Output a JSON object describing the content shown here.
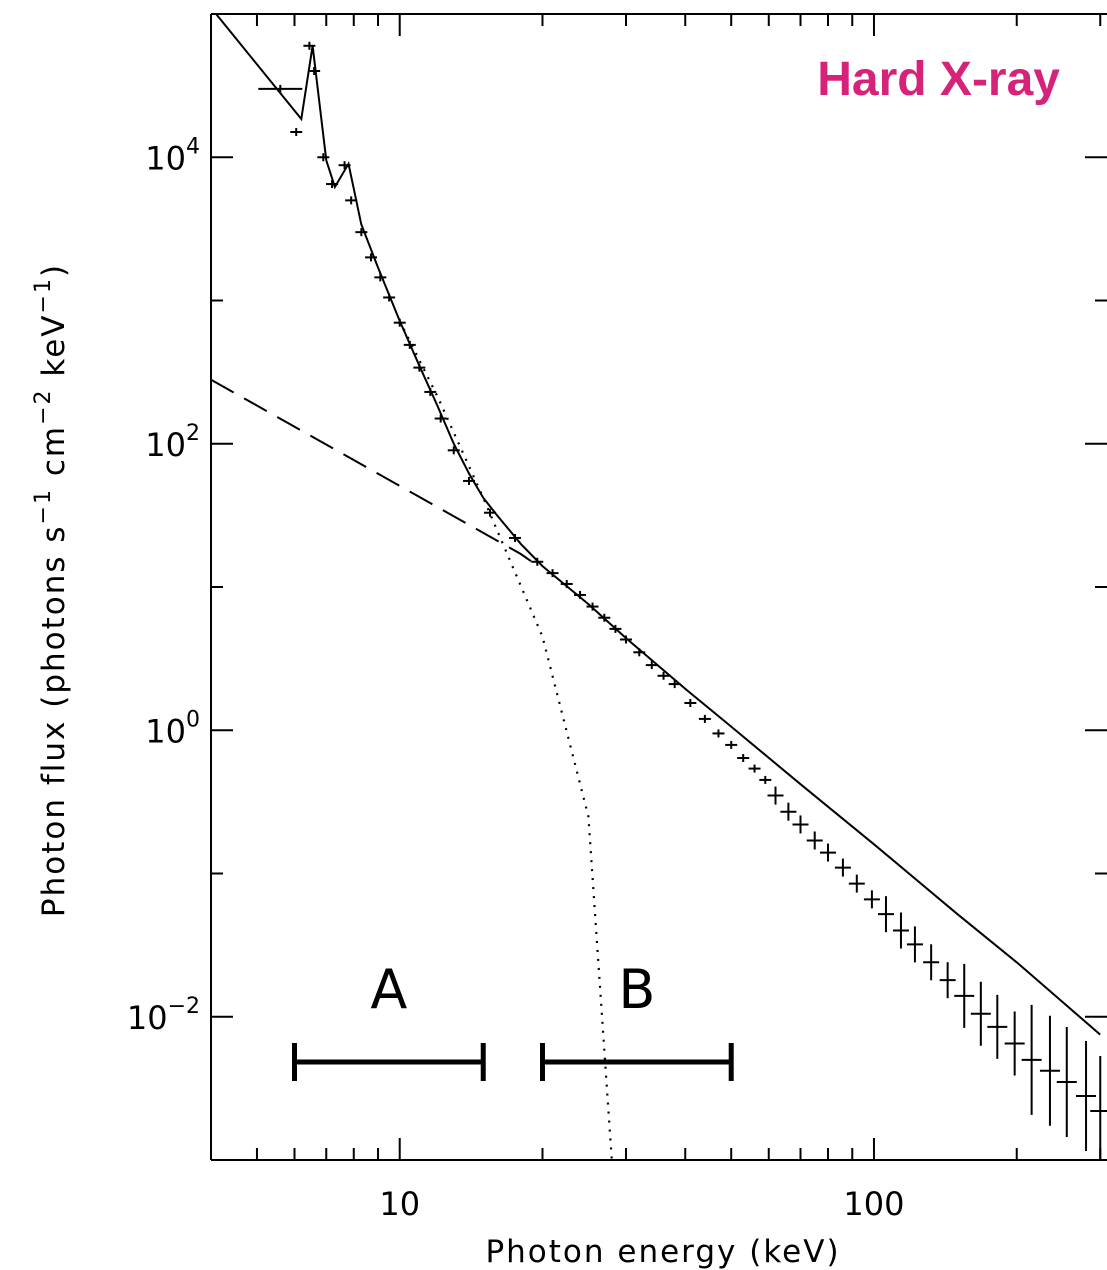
{
  "badge": {
    "text": "Hard X-ray",
    "color": "#d6237a"
  },
  "chart_data": {
    "type": "scatter",
    "xlabel": "Photon energy (keV)",
    "ylabel": {
      "prefix": "Photon flux (photons s",
      "exp1": "−1",
      "mid": " cm",
      "exp2": "−2",
      "mid2": " keV",
      "exp3": "−1",
      "suffix": ")"
    },
    "x_scale": "log",
    "y_scale": "log",
    "xlim": [
      4,
      310
    ],
    "ylim": [
      0.001,
      100000
    ],
    "x_ticks": [
      {
        "value": 10,
        "label": "10"
      },
      {
        "value": 100,
        "label": "100"
      }
    ],
    "y_ticks": [
      {
        "value": 10000,
        "base": "10",
        "exp": "4"
      },
      {
        "value": 100,
        "base": "10",
        "exp": "2"
      },
      {
        "value": 1,
        "base": "10",
        "exp": "0"
      },
      {
        "value": 0.01,
        "base": "10",
        "exp": "−2"
      }
    ],
    "data_points": [
      [
        5.6,
        30000
      ],
      [
        6.05,
        15000
      ],
      [
        6.45,
        60000
      ],
      [
        6.6,
        40000
      ],
      [
        6.9,
        10000
      ],
      [
        7.2,
        6500
      ],
      [
        7.65,
        8800
      ],
      [
        7.9,
        5000
      ],
      [
        8.3,
        3000
      ],
      [
        8.7,
        2000
      ],
      [
        9.1,
        1450
      ],
      [
        9.5,
        1050
      ],
      [
        10.0,
        700
      ],
      [
        10.5,
        490
      ],
      [
        11.0,
        340
      ],
      [
        11.6,
        230
      ],
      [
        12.2,
        150
      ],
      [
        13.0,
        90
      ],
      [
        14.0,
        55
      ],
      [
        15.5,
        33
      ],
      [
        17.5,
        22
      ],
      [
        19.5,
        15
      ],
      [
        21.0,
        12.5
      ],
      [
        22.5,
        10.5
      ],
      [
        24,
        8.8
      ],
      [
        25.5,
        7.3
      ],
      [
        27,
        6.1
      ],
      [
        28.5,
        5.1
      ],
      [
        30,
        4.3
      ],
      [
        32,
        3.5
      ],
      [
        34,
        2.85
      ],
      [
        36,
        2.4
      ],
      [
        38,
        2.1
      ],
      [
        41,
        1.55
      ],
      [
        44,
        1.2
      ],
      [
        47,
        0.95
      ],
      [
        50,
        0.79
      ],
      [
        53,
        0.64
      ],
      [
        56,
        0.54
      ],
      [
        59,
        0.45
      ],
      [
        62,
        0.35
      ],
      [
        66,
        0.27
      ],
      [
        70,
        0.22
      ],
      [
        75,
        0.17
      ],
      [
        80,
        0.14
      ],
      [
        86,
        0.11
      ],
      [
        92,
        0.085
      ],
      [
        99,
        0.066
      ],
      [
        106,
        0.052
      ],
      [
        114,
        0.04
      ],
      [
        122,
        0.032
      ],
      [
        132,
        0.024
      ],
      [
        143,
        0.018
      ],
      [
        155,
        0.014
      ],
      [
        168,
        0.0105
      ],
      [
        182,
        0.0085
      ],
      [
        198,
        0.0065
      ],
      [
        215,
        0.005
      ],
      [
        235,
        0.0042
      ],
      [
        255,
        0.0035
      ],
      [
        280,
        0.0028
      ],
      [
        300,
        0.0022
      ]
    ],
    "model_total": [
      [
        4.1,
        100000
      ],
      [
        6.2,
        18500
      ],
      [
        6.55,
        60000
      ],
      [
        7.0,
        9500
      ],
      [
        7.3,
        6200
      ],
      [
        7.8,
        9000
      ],
      [
        8.3,
        3400
      ],
      [
        9.0,
        1700
      ],
      [
        10.0,
        720
      ],
      [
        11.0,
        350
      ],
      [
        12.0,
        185
      ],
      [
        13.0,
        100
      ],
      [
        14.0,
        62
      ],
      [
        15.0,
        42
      ],
      [
        16.0,
        32
      ],
      [
        18.0,
        20
      ],
      [
        20.0,
        14
      ],
      [
        25.0,
        7.6
      ],
      [
        30.0,
        4.4
      ],
      [
        40.0,
        1.95
      ],
      [
        50.0,
        1.06
      ],
      [
        70.0,
        0.42
      ],
      [
        100.0,
        0.16
      ],
      [
        150.0,
        0.052
      ],
      [
        200.0,
        0.024
      ],
      [
        300.0,
        0.0075
      ]
    ],
    "model_nonthermal": [
      [
        4.0,
        280
      ],
      [
        18.0,
        17
      ],
      [
        19.0,
        15
      ]
    ],
    "model_thermal": [
      [
        10.0,
        720
      ],
      [
        12.0,
        215
      ],
      [
        15.0,
        42
      ],
      [
        20.0,
        4.5
      ],
      [
        25.0,
        0.25
      ],
      [
        28.0,
        0.001
      ]
    ],
    "bands": [
      {
        "label": "A",
        "from": 6.0,
        "to": 15.0
      },
      {
        "label": "B",
        "from": 20.0,
        "to": 50.0
      }
    ],
    "grid": false
  }
}
